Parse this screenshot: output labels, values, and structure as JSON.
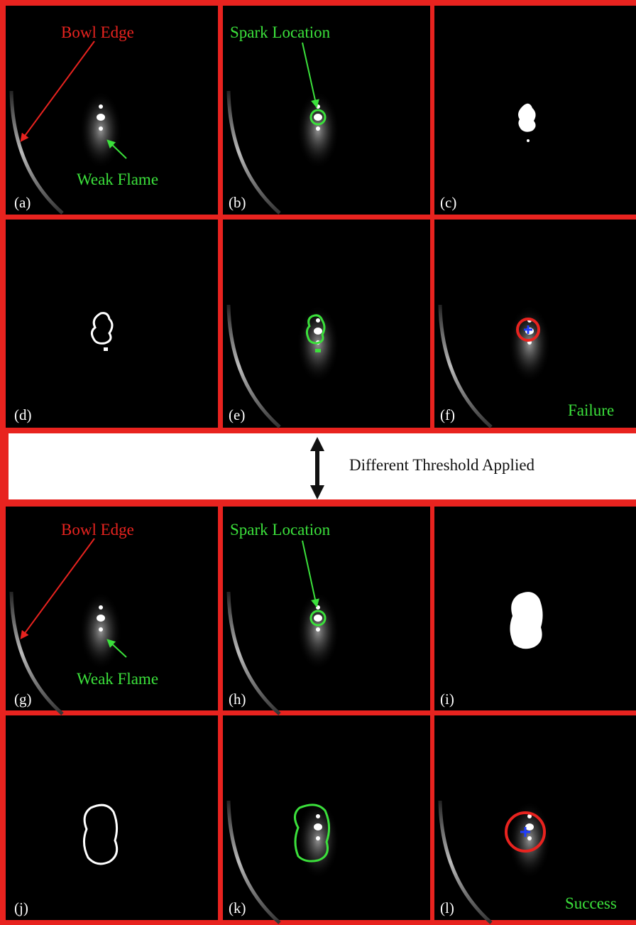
{
  "panels": [
    {
      "label": "(a)",
      "annotations": [
        "Bowl Edge",
        "Weak Flame"
      ]
    },
    {
      "label": "(b)",
      "annotations": [
        "Spark Location"
      ]
    },
    {
      "label": "(c)"
    },
    {
      "label": "(d)"
    },
    {
      "label": "(e)"
    },
    {
      "label": "(f)",
      "status": "Failure"
    },
    {
      "label": "(g)",
      "annotations": [
        "Bowl Edge",
        "Weak Flame"
      ]
    },
    {
      "label": "(h)",
      "annotations": [
        "Spark Location"
      ]
    },
    {
      "label": "(i)"
    },
    {
      "label": "(j)"
    },
    {
      "label": "(k)"
    },
    {
      "label": "(l)",
      "status": "Success"
    }
  ],
  "separator": "Different Threshold Applied"
}
